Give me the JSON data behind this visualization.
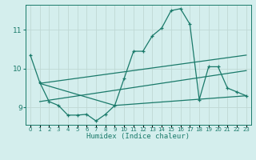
{
  "xlabel": "Humidex (Indice chaleur)",
  "bg_color": "#d4eeed",
  "grid_color": "#bfd8d5",
  "line_color": "#1a7a6a",
  "xlim": [
    -0.5,
    23.5
  ],
  "ylim": [
    8.55,
    11.65
  ],
  "yticks": [
    9,
    10,
    11
  ],
  "xticks": [
    0,
    1,
    2,
    3,
    4,
    5,
    6,
    7,
    8,
    9,
    10,
    11,
    12,
    13,
    14,
    15,
    16,
    17,
    18,
    19,
    20,
    21,
    22,
    23
  ],
  "line1_x": [
    0,
    1,
    2,
    3,
    4,
    5,
    6,
    7,
    8,
    9,
    10,
    11,
    12,
    13,
    14,
    15,
    16,
    17,
    18,
    19,
    20,
    21,
    22,
    23
  ],
  "line1_y": [
    10.35,
    9.65,
    9.15,
    9.05,
    8.8,
    8.8,
    8.82,
    8.65,
    8.82,
    9.05,
    9.75,
    10.45,
    10.45,
    10.85,
    11.05,
    11.5,
    11.55,
    11.15,
    9.2,
    10.05,
    10.05,
    9.5,
    9.4,
    9.3
  ],
  "line2_x": [
    1,
    23
  ],
  "line2_y": [
    9.62,
    10.35
  ],
  "line3_x": [
    1,
    23
  ],
  "line3_y": [
    9.15,
    9.95
  ],
  "line4_x": [
    1,
    9,
    23
  ],
  "line4_y": [
    9.62,
    9.05,
    9.3
  ]
}
